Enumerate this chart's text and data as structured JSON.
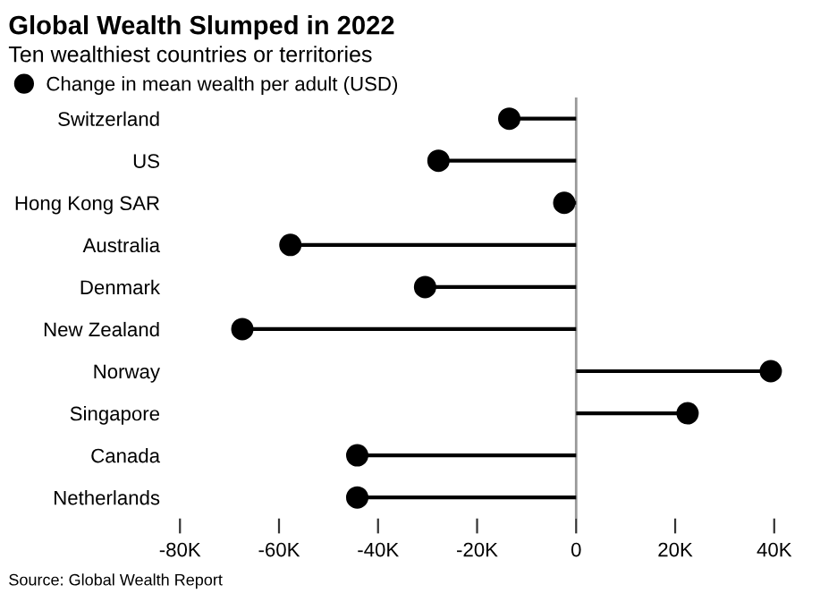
{
  "chart_data": {
    "type": "lollipop",
    "orientation": "horizontal",
    "title": "Global Wealth Slumped in 2022",
    "subtitle": "Ten wealthiest countries or territories",
    "categories": [
      "Switzerland",
      "US",
      "Hong Kong SAR",
      "Australia",
      "Denmark",
      "New Zealand",
      "Norway",
      "Singapore",
      "Canada",
      "Netherlands"
    ],
    "series": [
      {
        "name": "Change in mean wealth per adult (USD)",
        "color": "#000000",
        "values": [
          -13500,
          -27800,
          -2400,
          -57700,
          -30500,
          -67400,
          39300,
          22500,
          -44200,
          -44200
        ]
      }
    ],
    "xlim": [
      -80000,
      40000
    ],
    "xticks": [
      {
        "value": -80000,
        "label": "-80K"
      },
      {
        "value": -60000,
        "label": "-60K"
      },
      {
        "value": -40000,
        "label": "-40K"
      },
      {
        "value": -20000,
        "label": "-20K"
      },
      0,
      {
        "value": 20000,
        "label": "20K"
      },
      {
        "value": 40000,
        "label": "40K"
      }
    ],
    "ref_lines": [
      {
        "axis": "x",
        "value": 0,
        "color": "#999999"
      }
    ],
    "marker": "circle",
    "grid": false,
    "legend": "top left",
    "annotations": [
      "Source: Global Wealth Report"
    ]
  }
}
